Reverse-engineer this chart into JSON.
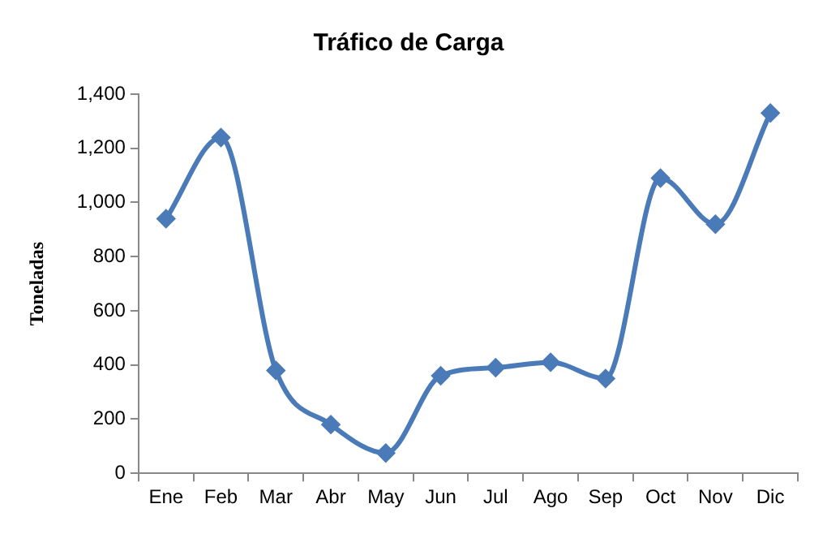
{
  "chart_data": {
    "type": "line",
    "title": "Tráfico de Carga",
    "ylabel": "Toneladas",
    "categories": [
      "Ene",
      "Feb",
      "Mar",
      "Abr",
      "May",
      "Jun",
      "Jul",
      "Ago",
      "Sep",
      "Oct",
      "Nov",
      "Dic"
    ],
    "series": [
      {
        "color": "#4a7ab8",
        "values": [
          940,
          1240,
          380,
          180,
          75,
          360,
          390,
          410,
          350,
          1090,
          920,
          1330
        ]
      }
    ],
    "ylim": [
      0,
      1400
    ],
    "yticks": [
      0,
      200,
      400,
      600,
      800,
      {
        "value": 1000,
        "label": "1,000"
      },
      {
        "value": 1200,
        "label": "1,200"
      },
      {
        "value": 1400,
        "label": "1,400"
      }
    ],
    "grid": false,
    "legend": false,
    "marker": "diamond",
    "line_style": "solid"
  }
}
